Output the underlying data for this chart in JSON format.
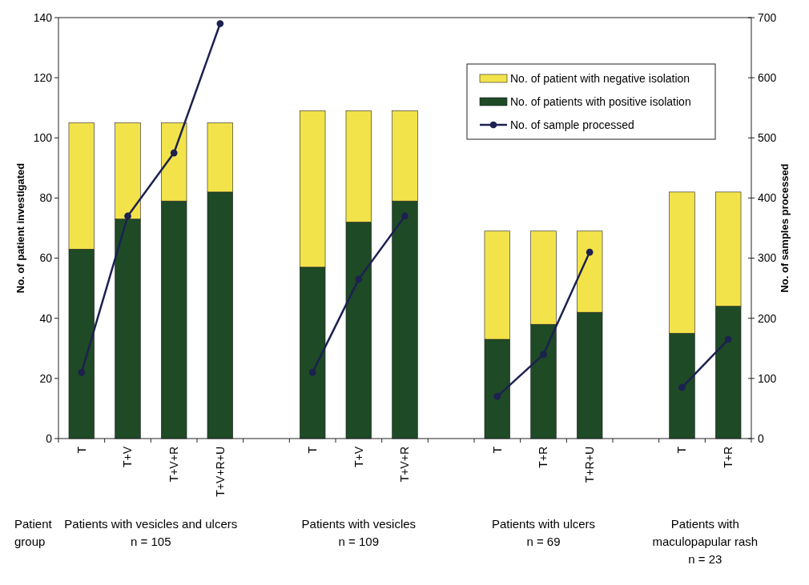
{
  "chart_data": {
    "type": "bar",
    "stacked": true,
    "categories": [
      "T",
      "T+V",
      "T+V+R",
      "T+V+R+U",
      null,
      "T",
      "T+V",
      "T+V+R",
      null,
      "T",
      "T+R",
      "T+R+U",
      null,
      "T",
      "T+R"
    ],
    "series": [
      {
        "name": "No. of patients with positive isolation",
        "color": "#1e4a26",
        "values": [
          63,
          73,
          79,
          82,
          null,
          57,
          72,
          79,
          null,
          33,
          38,
          42,
          null,
          35,
          44
        ]
      },
      {
        "name": "No. of patient with negative isolation",
        "color": "#f3e34a",
        "values": [
          42,
          32,
          26,
          23,
          null,
          52,
          37,
          30,
          null,
          36,
          31,
          27,
          null,
          47,
          38
        ]
      },
      {
        "name": "No. of sample processed",
        "type": "line",
        "axis": "y2",
        "color": "#1c2150",
        "marker": "circle",
        "line_style": "solid",
        "values": [
          110,
          370,
          475,
          690,
          null,
          110,
          265,
          370,
          null,
          70,
          140,
          310,
          null,
          85,
          165
        ]
      }
    ],
    "ylabel": "No. of patient investigated",
    "y2label": "No. of samples processed",
    "ylim": [
      0,
      140
    ],
    "yticks": [
      0,
      20,
      40,
      60,
      80,
      100,
      120,
      140
    ],
    "y2lim": [
      0,
      700
    ],
    "y2ticks": [
      0,
      100,
      200,
      300,
      400,
      500,
      600,
      700
    ],
    "legend": "top right",
    "grid": false,
    "annotations": [
      "Patient\ngroup",
      "Patients with vesicles and ulcers\nn = 105",
      "Patients with vesicles\nn = 109",
      "Patients with ulcers\nn = 69",
      "Patients with\nmaculopapular rash\nn = 23"
    ]
  }
}
